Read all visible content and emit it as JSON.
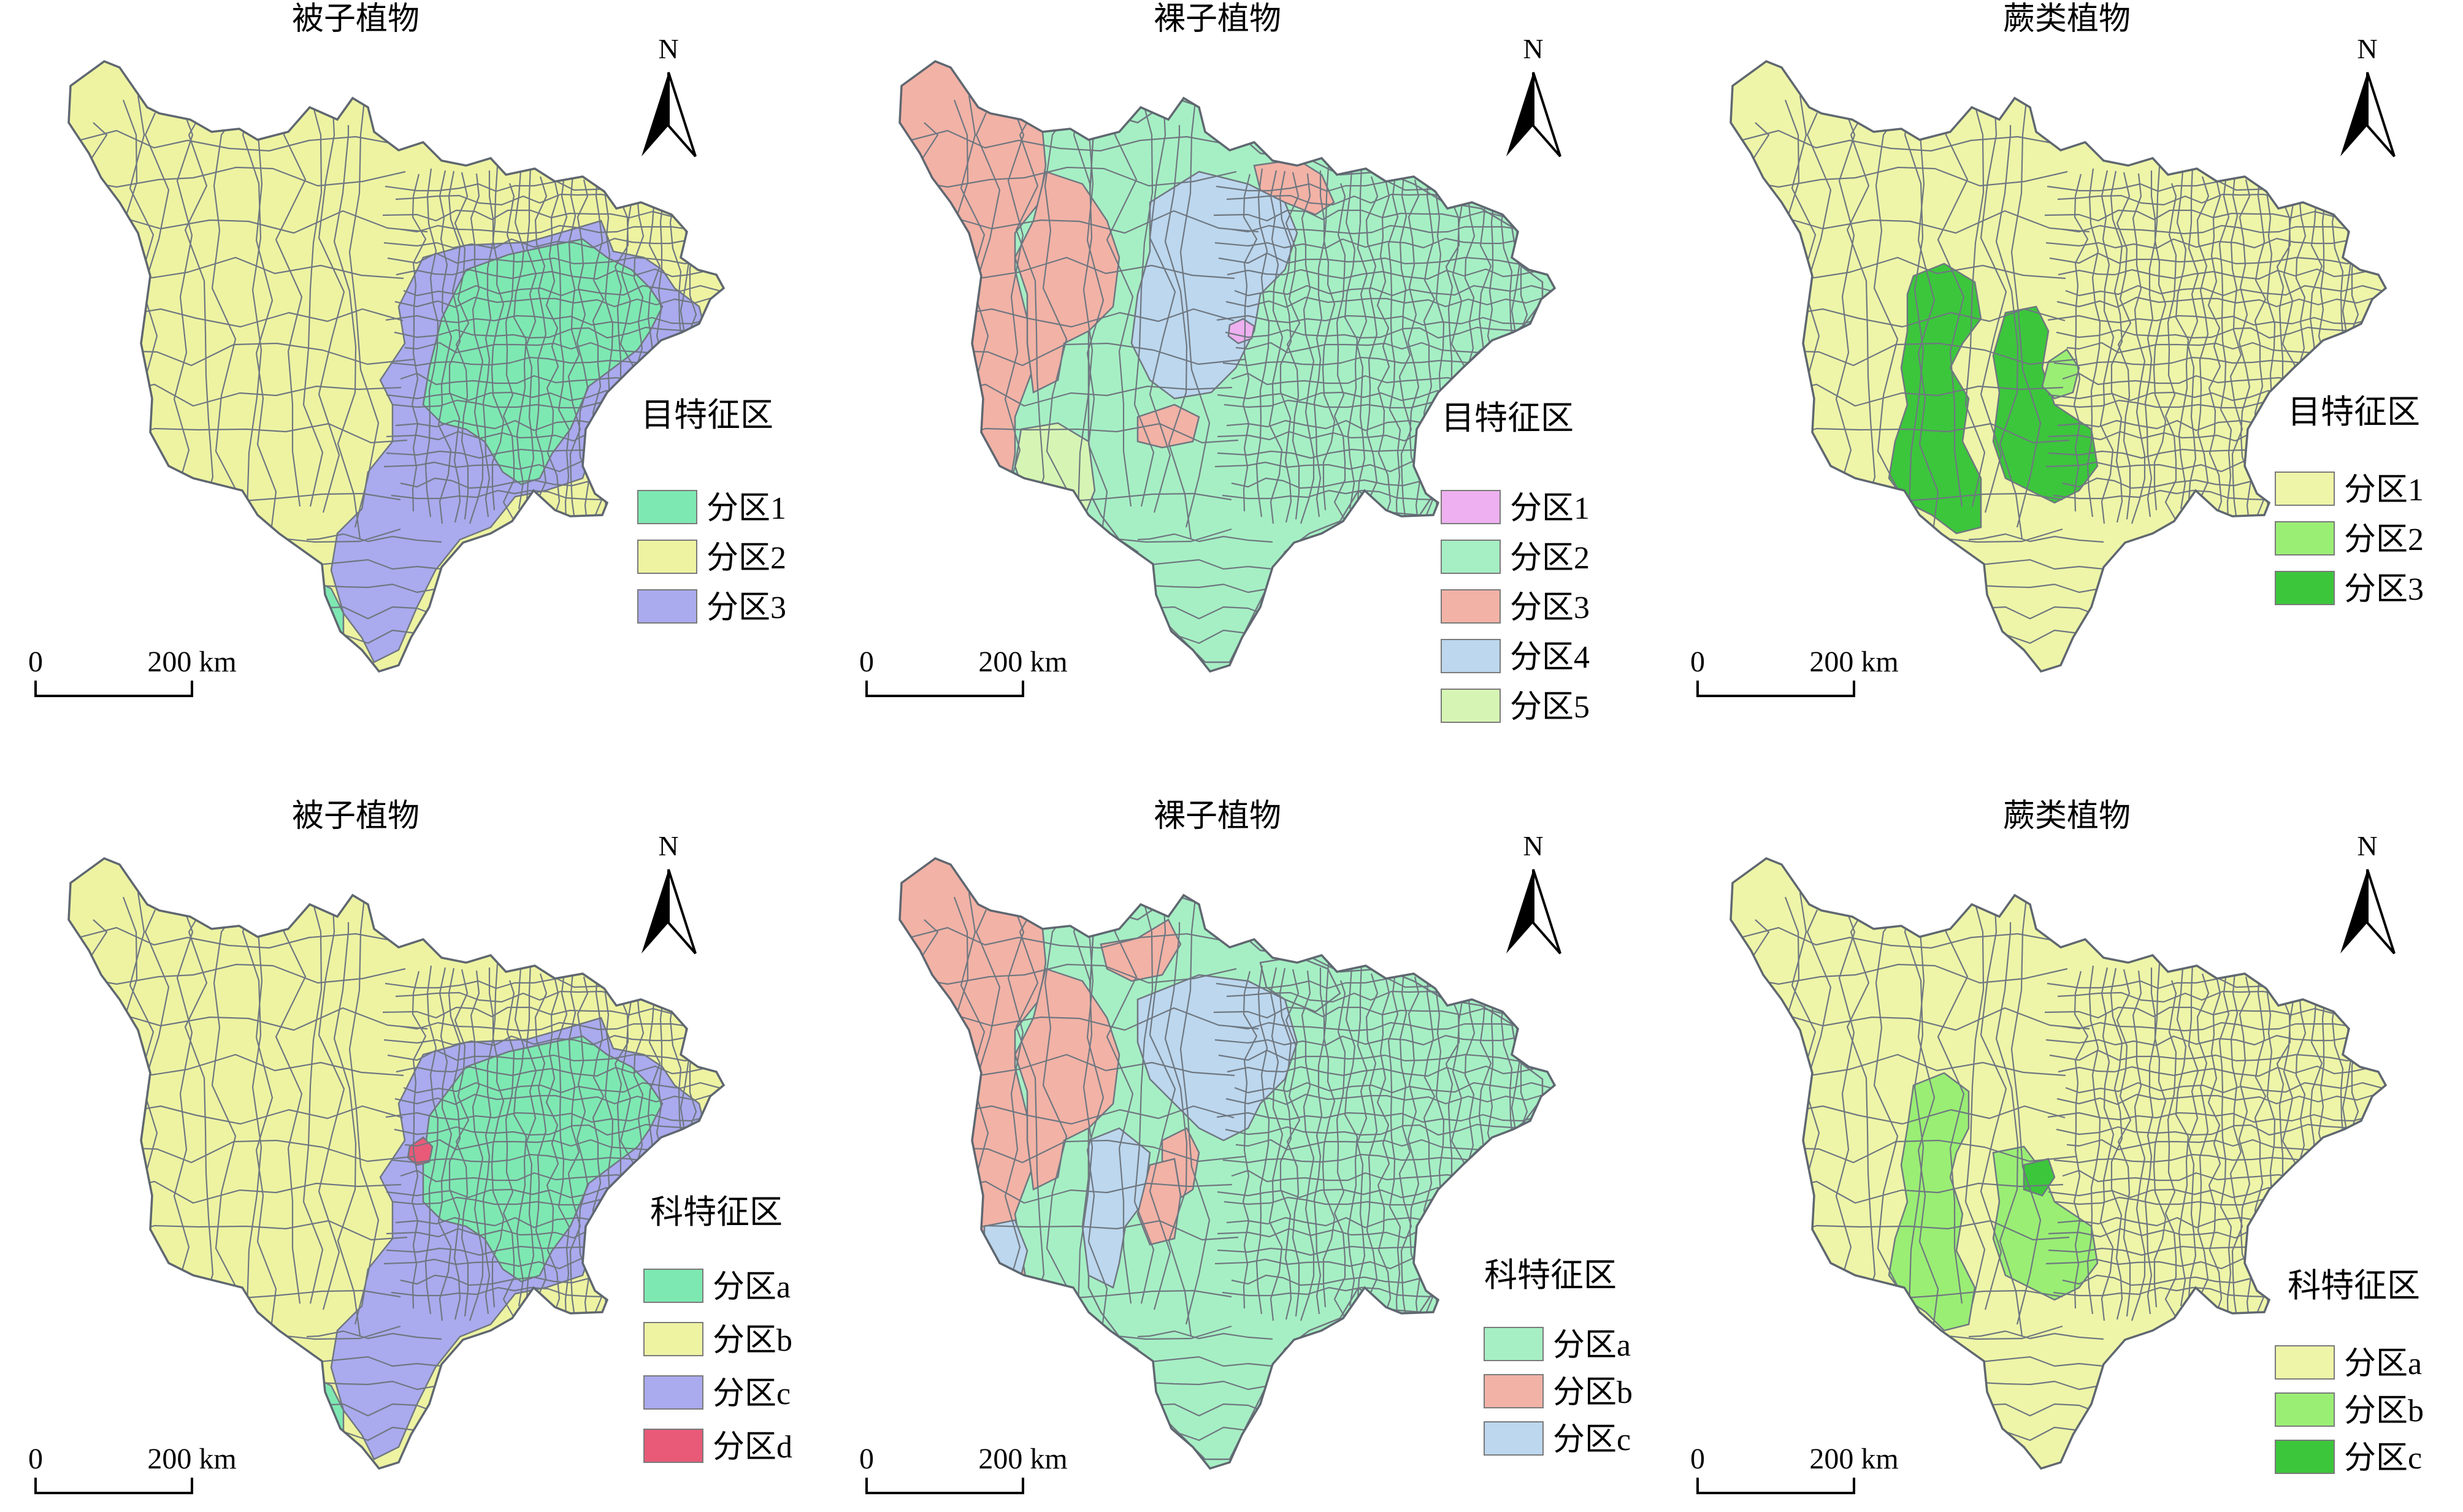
{
  "panels": [
    {
      "title": "被子植物",
      "north": "N",
      "legend_title": "目特征区",
      "scale": {
        "zero": "0",
        "label": "200 km"
      },
      "legend": [
        {
          "label": "分区1",
          "color": "#7ee8b2"
        },
        {
          "label": "分区2",
          "color": "#eef3a2"
        },
        {
          "label": "分区3",
          "color": "#aaaaee"
        }
      ]
    },
    {
      "title": "裸子植物",
      "north": "N",
      "legend_title": "目特征区",
      "scale": {
        "zero": "0",
        "label": "200 km"
      },
      "legend": [
        {
          "label": "分区1",
          "color": "#eeb0f0"
        },
        {
          "label": "分区2",
          "color": "#a6efc4"
        },
        {
          "label": "分区3",
          "color": "#f2b2a6"
        },
        {
          "label": "分区4",
          "color": "#bcd7ee"
        },
        {
          "label": "分区5",
          "color": "#d6f5b4"
        }
      ]
    },
    {
      "title": "蕨类植物",
      "north": "N",
      "legend_title": "目特征区",
      "scale": {
        "zero": "0",
        "label": "200 km"
      },
      "legend": [
        {
          "label": "分区1",
          "color": "#eef5a8"
        },
        {
          "label": "分区2",
          "color": "#9aee74"
        },
        {
          "label": "分区3",
          "color": "#3cc63c"
        }
      ]
    },
    {
      "title": "被子植物",
      "north": "N",
      "legend_title": "科特征区",
      "scale": {
        "zero": "0",
        "label": "200 km"
      },
      "legend": [
        {
          "label": "分区a",
          "color": "#7ee8b2"
        },
        {
          "label": "分区b",
          "color": "#eef3a2"
        },
        {
          "label": "分区c",
          "color": "#aaaaee"
        },
        {
          "label": "分区d",
          "color": "#e85a78"
        }
      ]
    },
    {
      "title": "裸子植物",
      "north": "N",
      "legend_title": "科特征区",
      "scale": {
        "zero": "0",
        "label": "200 km"
      },
      "legend": [
        {
          "label": "分区a",
          "color": "#a6efc4"
        },
        {
          "label": "分区b",
          "color": "#f2b2a6"
        },
        {
          "label": "分区c",
          "color": "#bcd7ee"
        }
      ]
    },
    {
      "title": "蕨类植物",
      "north": "N",
      "legend_title": "科特征区",
      "scale": {
        "zero": "0",
        "label": "200 km"
      },
      "legend": [
        {
          "label": "分区a",
          "color": "#eef5a8"
        },
        {
          "label": "分区b",
          "color": "#9aee74"
        },
        {
          "label": "分区c",
          "color": "#3cc63c"
        }
      ]
    }
  ]
}
